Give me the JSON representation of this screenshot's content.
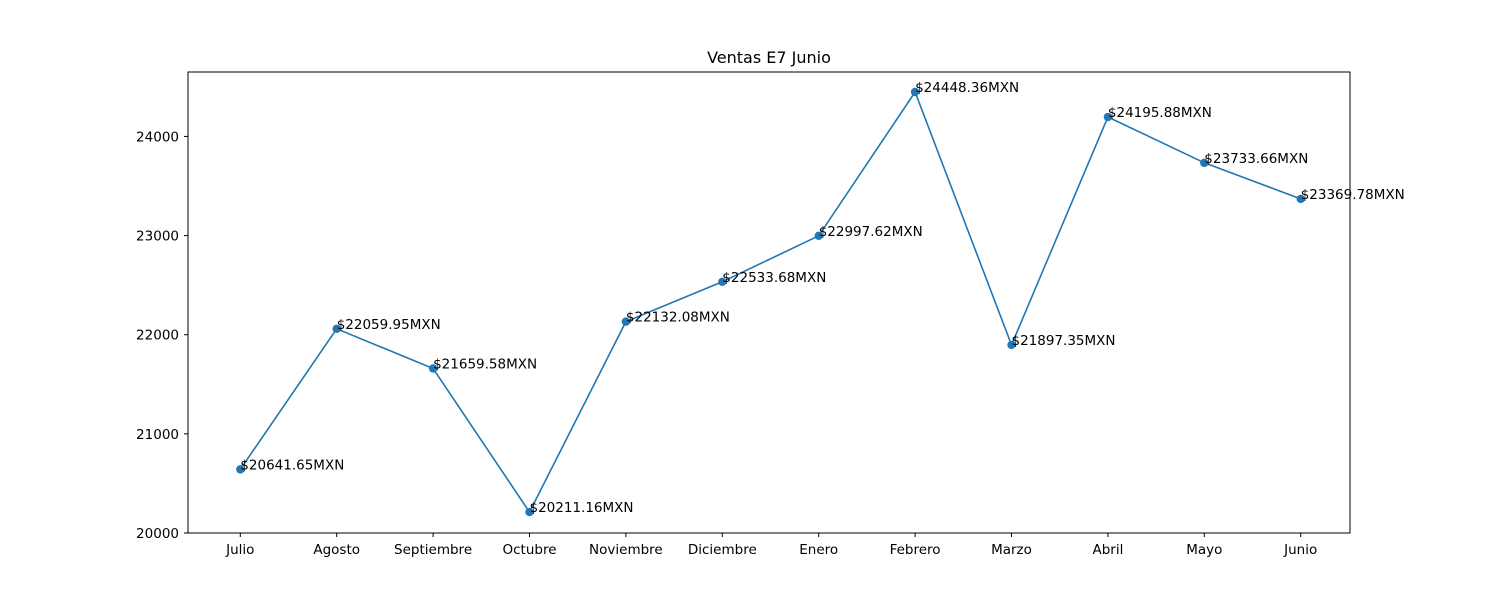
{
  "chart_data": {
    "type": "line",
    "title": "Ventas E7 Junio",
    "xlabel": "",
    "ylabel": "",
    "categories": [
      "Julio",
      "Agosto",
      "Septiembre",
      "Octubre",
      "Noviembre",
      "Diciembre",
      "Enero",
      "Febrero",
      "Marzo",
      "Abril",
      "Mayo",
      "Junio"
    ],
    "series": [
      {
        "values": [
          20641.65,
          22059.95,
          21659.58,
          20211.16,
          22132.08,
          22533.68,
          22997.62,
          24448.36,
          21897.35,
          24195.88,
          23733.66,
          23369.78
        ],
        "data_labels": [
          "$20641.65MXN",
          "$22059.95MXN",
          "$21659.58MXN",
          "$20211.16MXN",
          "$22132.08MXN",
          "$22533.68MXN",
          "$22997.62MXN",
          "$24448.36MXN",
          "$21897.35MXN",
          "$24195.88MXN",
          "$23733.66MXN",
          "$23369.78MXN"
        ],
        "color": "#1f77b4"
      }
    ],
    "yticks": [
      20000,
      21000,
      22000,
      23000,
      24000
    ],
    "ylim": [
      20000,
      24650
    ],
    "grid": false,
    "legend": "none"
  }
}
